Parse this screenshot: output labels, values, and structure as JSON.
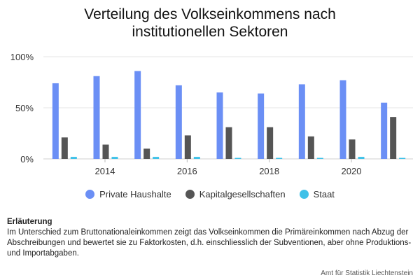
{
  "title_line1": "Verteilung des Volkseinkommens nach",
  "title_line2": "institutionellen Sektoren",
  "chart_data": {
    "type": "bar",
    "x": [
      2013,
      2014,
      2015,
      2016,
      2017,
      2018,
      2019,
      2020,
      2021
    ],
    "x_tick_labels": [
      "2014",
      "2016",
      "2018",
      "2020"
    ],
    "x_tick_values": [
      2014,
      2016,
      2018,
      2020
    ],
    "y_tick_labels": [
      "0%",
      "50%",
      "100%"
    ],
    "y_tick_values": [
      0,
      50,
      100
    ],
    "ylim": [
      0,
      100
    ],
    "series": [
      {
        "name": "Private Haushalte",
        "color": "#6b8ff5",
        "values": [
          74,
          81,
          86,
          72,
          65,
          64,
          73,
          77,
          55
        ]
      },
      {
        "name": "Kapitalgesellschaften",
        "color": "#555555",
        "values": [
          21,
          14,
          10,
          23,
          31,
          31,
          22,
          19,
          41
        ]
      },
      {
        "name": "Staat",
        "color": "#3fc1e8",
        "values": [
          2,
          2,
          2,
          2,
          1,
          1,
          1,
          2,
          1
        ]
      }
    ],
    "grid": true,
    "legend_position": "bottom"
  },
  "legend": [
    {
      "label": "Private Haushalte",
      "color": "#6b8ff5"
    },
    {
      "label": "Kapitalgesellschaften",
      "color": "#555555"
    },
    {
      "label": "Staat",
      "color": "#3fc1e8"
    }
  ],
  "note": {
    "heading": "Erläuterung",
    "text": "Im Unterschied zum Bruttonationaleinkommen zeigt das Volkseinkommen die Primäreinkommen nach Abzug der Abschreibungen und bewertet sie zu Faktorkosten, d.h. einschliesslich der Subventionen, aber ohne Produktions- und Importabgaben."
  },
  "source": "Amt für Statistik Liechtenstein"
}
